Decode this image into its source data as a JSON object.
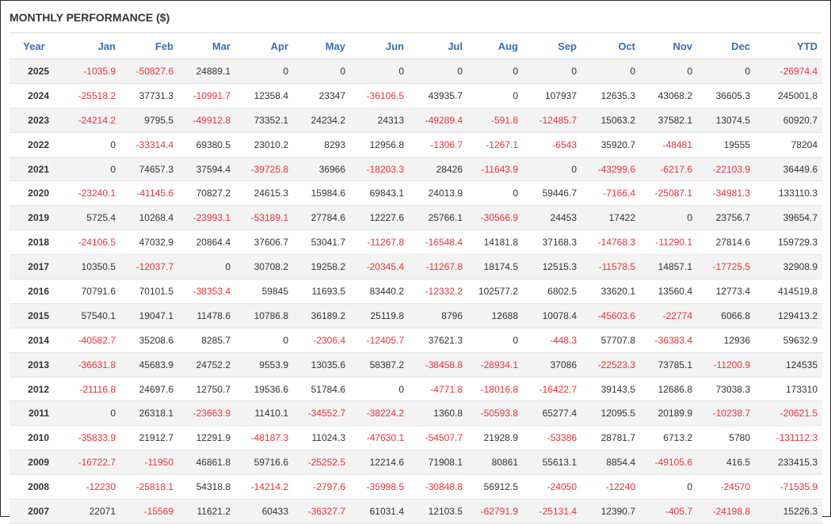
{
  "panel": {
    "title": "MONTHLY PERFORMANCE ($)"
  },
  "colors": {
    "header": "#3a6fb0",
    "negative": "#e8353a",
    "positive": "#333333"
  },
  "columns": [
    "Year",
    "Jan",
    "Feb",
    "Mar",
    "Apr",
    "May",
    "Jun",
    "Jul",
    "Aug",
    "Sep",
    "Oct",
    "Nov",
    "Dec",
    "YTD"
  ],
  "rows": [
    [
      "2025",
      "-1035.9",
      "-50827.6",
      "24889.1",
      "0",
      "0",
      "0",
      "0",
      "0",
      "0",
      "0",
      "0",
      "0",
      "-26974.4"
    ],
    [
      "2024",
      "-25518.2",
      "37731.3",
      "-10991.7",
      "12358.4",
      "23347",
      "-36106.5",
      "43935.7",
      "0",
      "107937",
      "12635.3",
      "43068.2",
      "36605.3",
      "245001.8"
    ],
    [
      "2023",
      "-24214.2",
      "9795.5",
      "-49912.8",
      "73352.1",
      "24234.2",
      "24313",
      "-49289.4",
      "-591.8",
      "-12485.7",
      "15063.2",
      "37582.1",
      "13074.5",
      "60920.7"
    ],
    [
      "2022",
      "0",
      "-33314.4",
      "69380.5",
      "23010.2",
      "8293",
      "12956.8",
      "-1306.7",
      "-1267.1",
      "-6543",
      "35920.7",
      "-48481",
      "19555",
      "78204"
    ],
    [
      "2021",
      "0",
      "74657.3",
      "37594.4",
      "-39725.8",
      "36966",
      "-18203.3",
      "28426",
      "-11643.9",
      "0",
      "-43299.6",
      "-6217.6",
      "-22103.9",
      "36449.6"
    ],
    [
      "2020",
      "-23240.1",
      "-41145.6",
      "70827.2",
      "24615.3",
      "15984.6",
      "69843.1",
      "24013.9",
      "0",
      "59446.7",
      "-7166.4",
      "-25087.1",
      "-34981.3",
      "133110.3"
    ],
    [
      "2019",
      "5725.4",
      "10268.4",
      "-23993.1",
      "-53189.1",
      "27784.6",
      "12227.6",
      "25766.1",
      "-30566.9",
      "24453",
      "17422",
      "0",
      "23756.7",
      "39654.7"
    ],
    [
      "2018",
      "-24106.5",
      "47032.9",
      "20864.4",
      "37606.7",
      "53041.7",
      "-11267.8",
      "-16548.4",
      "14181.8",
      "37168.3",
      "-14768.3",
      "-11290.1",
      "27814.6",
      "159729.3"
    ],
    [
      "2017",
      "10350.5",
      "-12037.7",
      "0",
      "30708.2",
      "19258.2",
      "-20345.4",
      "-11267.8",
      "18174.5",
      "12515.3",
      "-11578.5",
      "14857.1",
      "-17725.5",
      "32908.9"
    ],
    [
      "2016",
      "70791.6",
      "70101.5",
      "-38353.4",
      "59845",
      "11693.5",
      "83440.2",
      "-12332.2",
      "102577.2",
      "6802.5",
      "33620.1",
      "13560.4",
      "12773.4",
      "414519.8"
    ],
    [
      "2015",
      "57540.1",
      "19047.1",
      "11478.6",
      "10786.8",
      "36189.2",
      "25119.8",
      "8796",
      "12688",
      "10078.4",
      "-45603.6",
      "-22774",
      "6066.8",
      "129413.2"
    ],
    [
      "2014",
      "-40582.7",
      "35208.6",
      "8285.7",
      "0",
      "-2306.4",
      "-12405.7",
      "37621.3",
      "0",
      "-448.3",
      "57707.8",
      "-36383.4",
      "12936",
      "59632.9"
    ],
    [
      "2013",
      "-36631.8",
      "45683.9",
      "24752.2",
      "9553.9",
      "13035.6",
      "58387.2",
      "-38458.8",
      "-28934.1",
      "37086",
      "-22523.3",
      "73785.1",
      "-11200.9",
      "124535"
    ],
    [
      "2012",
      "-21116.8",
      "24697.6",
      "12750.7",
      "19536.6",
      "51784.6",
      "0",
      "-4771.8",
      "-18016.8",
      "-16422.7",
      "39143.5",
      "12686.8",
      "73038.3",
      "173310"
    ],
    [
      "2011",
      "0",
      "26318.1",
      "-23663.9",
      "11410.1",
      "-34552.7",
      "-38224.2",
      "1360.8",
      "-50593.8",
      "65277.4",
      "12095.5",
      "20189.9",
      "-10238.7",
      "-20621.5"
    ],
    [
      "2010",
      "-35833.9",
      "21912.7",
      "12291.9",
      "-48187.3",
      "11024.3",
      "-47630.1",
      "-54507.7",
      "21928.9",
      "-53386",
      "28781.7",
      "6713.2",
      "5780",
      "-131112.3"
    ],
    [
      "2009",
      "-16722.7",
      "-11950",
      "46861.8",
      "59716.6",
      "-25252.5",
      "12214.6",
      "71908.1",
      "80861",
      "55613.1",
      "8854.4",
      "-49105.6",
      "416.5",
      "233415.3"
    ],
    [
      "2008",
      "-12230",
      "-25818.1",
      "54318.8",
      "-14214.2",
      "-2797.6",
      "-35998.5",
      "-30848.8",
      "56912.5",
      "-24050",
      "-12240",
      "0",
      "-24570",
      "-71535.9"
    ],
    [
      "2007",
      "22071",
      "-15569",
      "11621.2",
      "60433",
      "-36327.7",
      "61031.4",
      "12103.5",
      "-62791.9",
      "-25131.4",
      "12390.7",
      "-405.7",
      "-24198.8",
      "15226.3"
    ]
  ]
}
